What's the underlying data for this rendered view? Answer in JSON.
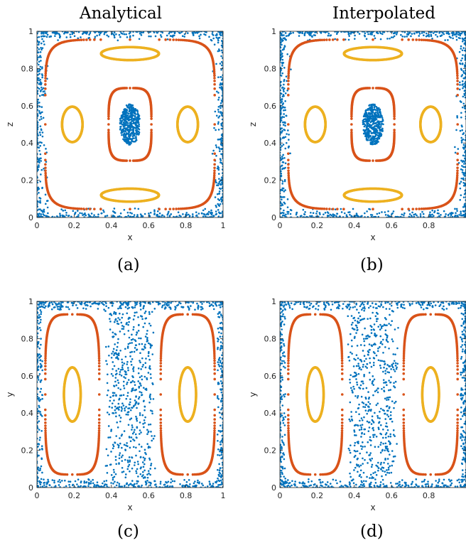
{
  "column_titles": [
    "Analytical",
    "Interpolated"
  ],
  "colors": {
    "scatter": "#0072BD",
    "outer_orbit": "#D95319",
    "inner_orbit": "#EDB120",
    "axis": "#262626"
  },
  "chart_data": [
    {
      "id": "a",
      "caption": "(a)",
      "type": "scatter",
      "xlabel": "x",
      "ylabel": "z",
      "xlim": [
        0,
        1
      ],
      "ylim": [
        0,
        1
      ],
      "xticks": [
        "0",
        "0.2",
        "0.4",
        "0.6",
        "0.8",
        "1"
      ],
      "yticks": [
        "0",
        "0.2",
        "0.4",
        "0.6",
        "0.8",
        "1"
      ],
      "series": [
        {
          "kind": "chaotic-corners",
          "color": "scatter"
        },
        {
          "kind": "central-cloud",
          "color": "scatter",
          "center": [
            0.5,
            0.5
          ],
          "extent": [
            0.055,
            0.11
          ]
        },
        {
          "kind": "superellipse",
          "color": "outer_orbit",
          "center": [
            0.5,
            0.5
          ],
          "extent": [
            0.455,
            0.455
          ],
          "p": 7
        },
        {
          "kind": "superellipse",
          "color": "outer_orbit",
          "center": [
            0.5,
            0.5
          ],
          "extent": [
            0.115,
            0.195
          ],
          "p": 4
        },
        {
          "kind": "ellipse",
          "color": "inner_orbit",
          "center": [
            0.5,
            0.88
          ],
          "extent": [
            0.155,
            0.035
          ]
        },
        {
          "kind": "ellipse",
          "color": "inner_orbit",
          "center": [
            0.5,
            0.12
          ],
          "extent": [
            0.155,
            0.035
          ]
        },
        {
          "kind": "ellipse",
          "color": "inner_orbit",
          "center": [
            0.19,
            0.5
          ],
          "extent": [
            0.055,
            0.095
          ]
        },
        {
          "kind": "ellipse",
          "color": "inner_orbit",
          "center": [
            0.81,
            0.5
          ],
          "extent": [
            0.055,
            0.095
          ]
        }
      ]
    },
    {
      "id": "b",
      "caption": "(b)",
      "type": "scatter",
      "xlabel": "x",
      "ylabel": "z",
      "xlim": [
        0,
        1
      ],
      "ylim": [
        0,
        1
      ],
      "xticks": [
        "0",
        "0.2",
        "0.4",
        "0.6",
        "0.8"
      ],
      "yticks": [
        "0",
        "0.2",
        "0.4",
        "0.6",
        "0.8",
        "1"
      ],
      "series": [
        {
          "kind": "chaotic-corners",
          "color": "scatter"
        },
        {
          "kind": "central-cloud",
          "color": "scatter",
          "center": [
            0.5,
            0.5
          ],
          "extent": [
            0.055,
            0.11
          ]
        },
        {
          "kind": "superellipse",
          "color": "outer_orbit",
          "center": [
            0.5,
            0.5
          ],
          "extent": [
            0.455,
            0.455
          ],
          "p": 7
        },
        {
          "kind": "superellipse",
          "color": "outer_orbit",
          "center": [
            0.5,
            0.5
          ],
          "extent": [
            0.115,
            0.195
          ],
          "p": 4
        },
        {
          "kind": "ellipse",
          "color": "inner_orbit",
          "center": [
            0.5,
            0.88
          ],
          "extent": [
            0.155,
            0.035
          ]
        },
        {
          "kind": "ellipse",
          "color": "inner_orbit",
          "center": [
            0.5,
            0.12
          ],
          "extent": [
            0.155,
            0.035
          ]
        },
        {
          "kind": "ellipse",
          "color": "inner_orbit",
          "center": [
            0.19,
            0.5
          ],
          "extent": [
            0.055,
            0.095
          ]
        },
        {
          "kind": "ellipse",
          "color": "inner_orbit",
          "center": [
            0.81,
            0.5
          ],
          "extent": [
            0.055,
            0.095
          ]
        }
      ]
    },
    {
      "id": "c",
      "caption": "(c)",
      "type": "scatter",
      "xlabel": "x",
      "ylabel": "y",
      "xlim": [
        0,
        1
      ],
      "ylim": [
        0,
        1
      ],
      "xticks": [
        "0",
        "0.2",
        "0.4",
        "0.6",
        "0.8",
        "1"
      ],
      "yticks": [
        "0",
        "0.2",
        "0.4",
        "0.6",
        "0.8",
        "1"
      ],
      "series": [
        {
          "kind": "chaotic-sea",
          "color": "scatter"
        },
        {
          "kind": "superellipse",
          "color": "outer_orbit",
          "center": [
            0.19,
            0.5
          ],
          "extent": [
            0.145,
            0.43
          ],
          "p": 4.5
        },
        {
          "kind": "superellipse",
          "color": "outer_orbit",
          "center": [
            0.81,
            0.5
          ],
          "extent": [
            0.145,
            0.43
          ],
          "p": 4.5
        },
        {
          "kind": "ellipse",
          "color": "inner_orbit",
          "center": [
            0.19,
            0.5
          ],
          "extent": [
            0.045,
            0.145
          ]
        },
        {
          "kind": "ellipse",
          "color": "inner_orbit",
          "center": [
            0.81,
            0.5
          ],
          "extent": [
            0.045,
            0.145
          ]
        }
      ]
    },
    {
      "id": "d",
      "caption": "(d)",
      "type": "scatter",
      "xlabel": "x",
      "ylabel": "y",
      "xlim": [
        0,
        1
      ],
      "ylim": [
        0,
        1
      ],
      "xticks": [
        "0",
        "0.2",
        "0.4",
        "0.6",
        "0.8"
      ],
      "yticks": [
        "0",
        "0.2",
        "0.4",
        "0.6",
        "0.8",
        "1"
      ],
      "series": [
        {
          "kind": "chaotic-sea",
          "color": "scatter"
        },
        {
          "kind": "superellipse",
          "color": "outer_orbit",
          "center": [
            0.19,
            0.5
          ],
          "extent": [
            0.145,
            0.43
          ],
          "p": 4.5
        },
        {
          "kind": "superellipse",
          "color": "outer_orbit",
          "center": [
            0.81,
            0.5
          ],
          "extent": [
            0.145,
            0.43
          ],
          "p": 4.5
        },
        {
          "kind": "ellipse",
          "color": "inner_orbit",
          "center": [
            0.19,
            0.5
          ],
          "extent": [
            0.045,
            0.145
          ]
        },
        {
          "kind": "ellipse",
          "color": "inner_orbit",
          "center": [
            0.81,
            0.5
          ],
          "extent": [
            0.045,
            0.145
          ]
        }
      ]
    }
  ]
}
